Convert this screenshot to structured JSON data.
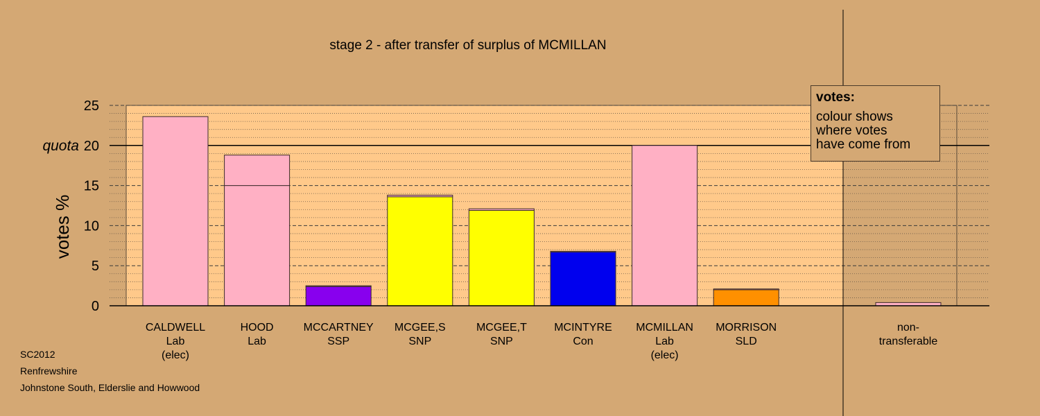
{
  "chart_data": {
    "type": "bar",
    "title": "stage 2 - after transfer of surplus of MCMILLAN",
    "ylabel": "votes %",
    "ylim": [
      0,
      25
    ],
    "yticks": [
      0,
      5,
      10,
      15,
      20,
      25
    ],
    "quota": {
      "label": "quota",
      "value": 20
    },
    "grid": true,
    "categories": [
      {
        "name": "CALDWELL",
        "party": "Lab",
        "note": "(elec)"
      },
      {
        "name": "HOOD",
        "party": "Lab",
        "note": ""
      },
      {
        "name": "MCCARTNEY",
        "party": "SSP",
        "note": ""
      },
      {
        "name": "MCGEE,S",
        "party": "SNP",
        "note": ""
      },
      {
        "name": "MCGEE,T",
        "party": "SNP",
        "note": ""
      },
      {
        "name": "MCINTYRE",
        "party": "Con",
        "note": ""
      },
      {
        "name": "MCMILLAN",
        "party": "Lab",
        "note": "(elec)"
      },
      {
        "name": "MORRISON",
        "party": "SLD",
        "note": ""
      }
    ],
    "bars": [
      {
        "candidate": "CALDWELL",
        "segments": [
          {
            "value": 23.6,
            "color": "#ffb0c4"
          }
        ]
      },
      {
        "candidate": "HOOD",
        "segments": [
          {
            "value": 15.0,
            "color": "#ffb0c4"
          },
          {
            "value": 3.8,
            "color": "#ffb0c4"
          }
        ]
      },
      {
        "candidate": "MCCARTNEY",
        "segments": [
          {
            "value": 2.4,
            "color": "#8800ee"
          },
          {
            "value": 0.1,
            "color": "#ffb0c4"
          }
        ]
      },
      {
        "candidate": "MCGEE,S",
        "segments": [
          {
            "value": 13.6,
            "color": "#ffff00"
          },
          {
            "value": 0.2,
            "color": "#ffb0c4"
          }
        ]
      },
      {
        "candidate": "MCGEE,T",
        "segments": [
          {
            "value": 11.9,
            "color": "#ffff00"
          },
          {
            "value": 0.2,
            "color": "#ffb0c4"
          }
        ]
      },
      {
        "candidate": "MCINTYRE",
        "segments": [
          {
            "value": 6.7,
            "color": "#0000ee"
          },
          {
            "value": 0.1,
            "color": "#ffb0c4"
          }
        ]
      },
      {
        "candidate": "MCMILLAN",
        "segments": [
          {
            "value": 20.0,
            "color": "#ffb0c4"
          }
        ]
      },
      {
        "candidate": "MORRISON",
        "segments": [
          {
            "value": 2.0,
            "color": "#ff9000"
          },
          {
            "value": 0.1,
            "color": "#ffb0c4"
          }
        ]
      }
    ],
    "non_transferable": {
      "label_line1": "non-",
      "label_line2": "transferable",
      "value": 0.4,
      "color": "#ffb0c4"
    },
    "colors": {
      "background": "#d4a874",
      "plot_area": "#ffc98a",
      "Lab": "#ffb0c4",
      "SSP": "#8800ee",
      "SNP": "#ffff00",
      "Con": "#0000ee",
      "SLD": "#ff9000"
    }
  },
  "legend": {
    "title": "votes:",
    "line1": "colour shows",
    "line2": "where votes",
    "line3": "have come from"
  },
  "footer": {
    "line1": "SC2012",
    "line2": "Renfrewshire",
    "line3": "Johnstone South, Elderslie and Howwood"
  }
}
